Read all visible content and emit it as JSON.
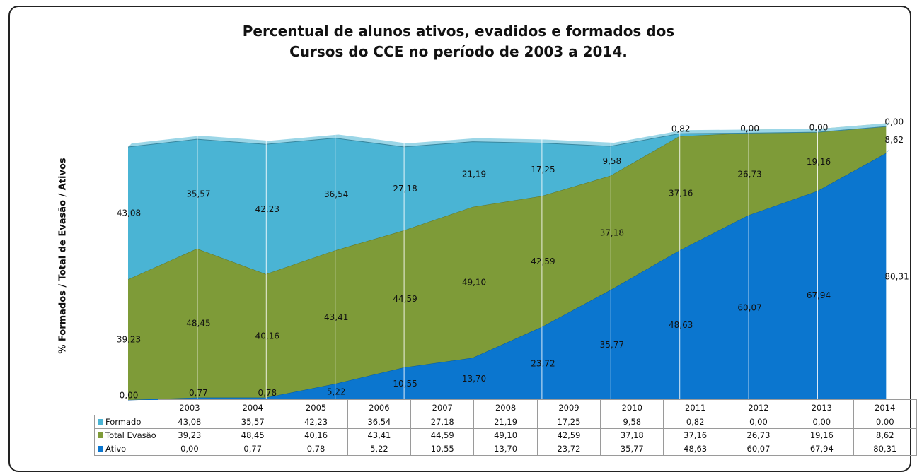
{
  "chart_data": {
    "type": "area",
    "stacked": true,
    "title": [
      "Percentual de alunos ativos, evadidos e formados dos",
      "Cursos do CCE no período de 2003 a 2014."
    ],
    "ylabel": "% Formados / Total de Evasão / Ativos",
    "xlabel": "",
    "categories": [
      "2003",
      "2004",
      "2005",
      "2006",
      "2007",
      "2008",
      "2009",
      "2010",
      "2011",
      "2012",
      "2013",
      "2014"
    ],
    "ylim": [
      0,
      100
    ],
    "grid": "vertical",
    "legend": "data-table",
    "series": [
      {
        "name": "Ativo",
        "color": "#0b76cf",
        "values": [
          0.0,
          0.77,
          0.78,
          5.22,
          10.55,
          13.7,
          23.72,
          35.77,
          48.63,
          60.07,
          67.94,
          80.31
        ],
        "labels": [
          "0,00",
          "0,77",
          "0,78",
          "5,22",
          "10,55",
          "13,70",
          "23,72",
          "35,77",
          "48,63",
          "60,07",
          "67,94",
          "80,31"
        ]
      },
      {
        "name": "Total Evasão",
        "color": "#7e9b38",
        "values": [
          39.23,
          48.45,
          40.16,
          43.41,
          44.59,
          49.1,
          42.59,
          37.18,
          37.16,
          26.73,
          19.16,
          8.62
        ],
        "labels": [
          "39,23",
          "48,45",
          "40,16",
          "43,41",
          "44,59",
          "49,10",
          "42,59",
          "37,18",
          "37,16",
          "26,73",
          "19,16",
          "8,62"
        ]
      },
      {
        "name": "Formado",
        "color": "#4ab4d4",
        "values": [
          43.08,
          35.57,
          42.23,
          36.54,
          27.18,
          21.19,
          17.25,
          9.58,
          0.82,
          0.0,
          0.0,
          0.0
        ],
        "labels": [
          "43,08",
          "35,57",
          "42,23",
          "36,54",
          "27,18",
          "21,19",
          "17,25",
          "9,58",
          "0,82",
          "0,00",
          "0,00",
          "0,00"
        ]
      }
    ],
    "table_rows": [
      "Formado",
      "Total Evasão",
      "Ativo"
    ]
  }
}
